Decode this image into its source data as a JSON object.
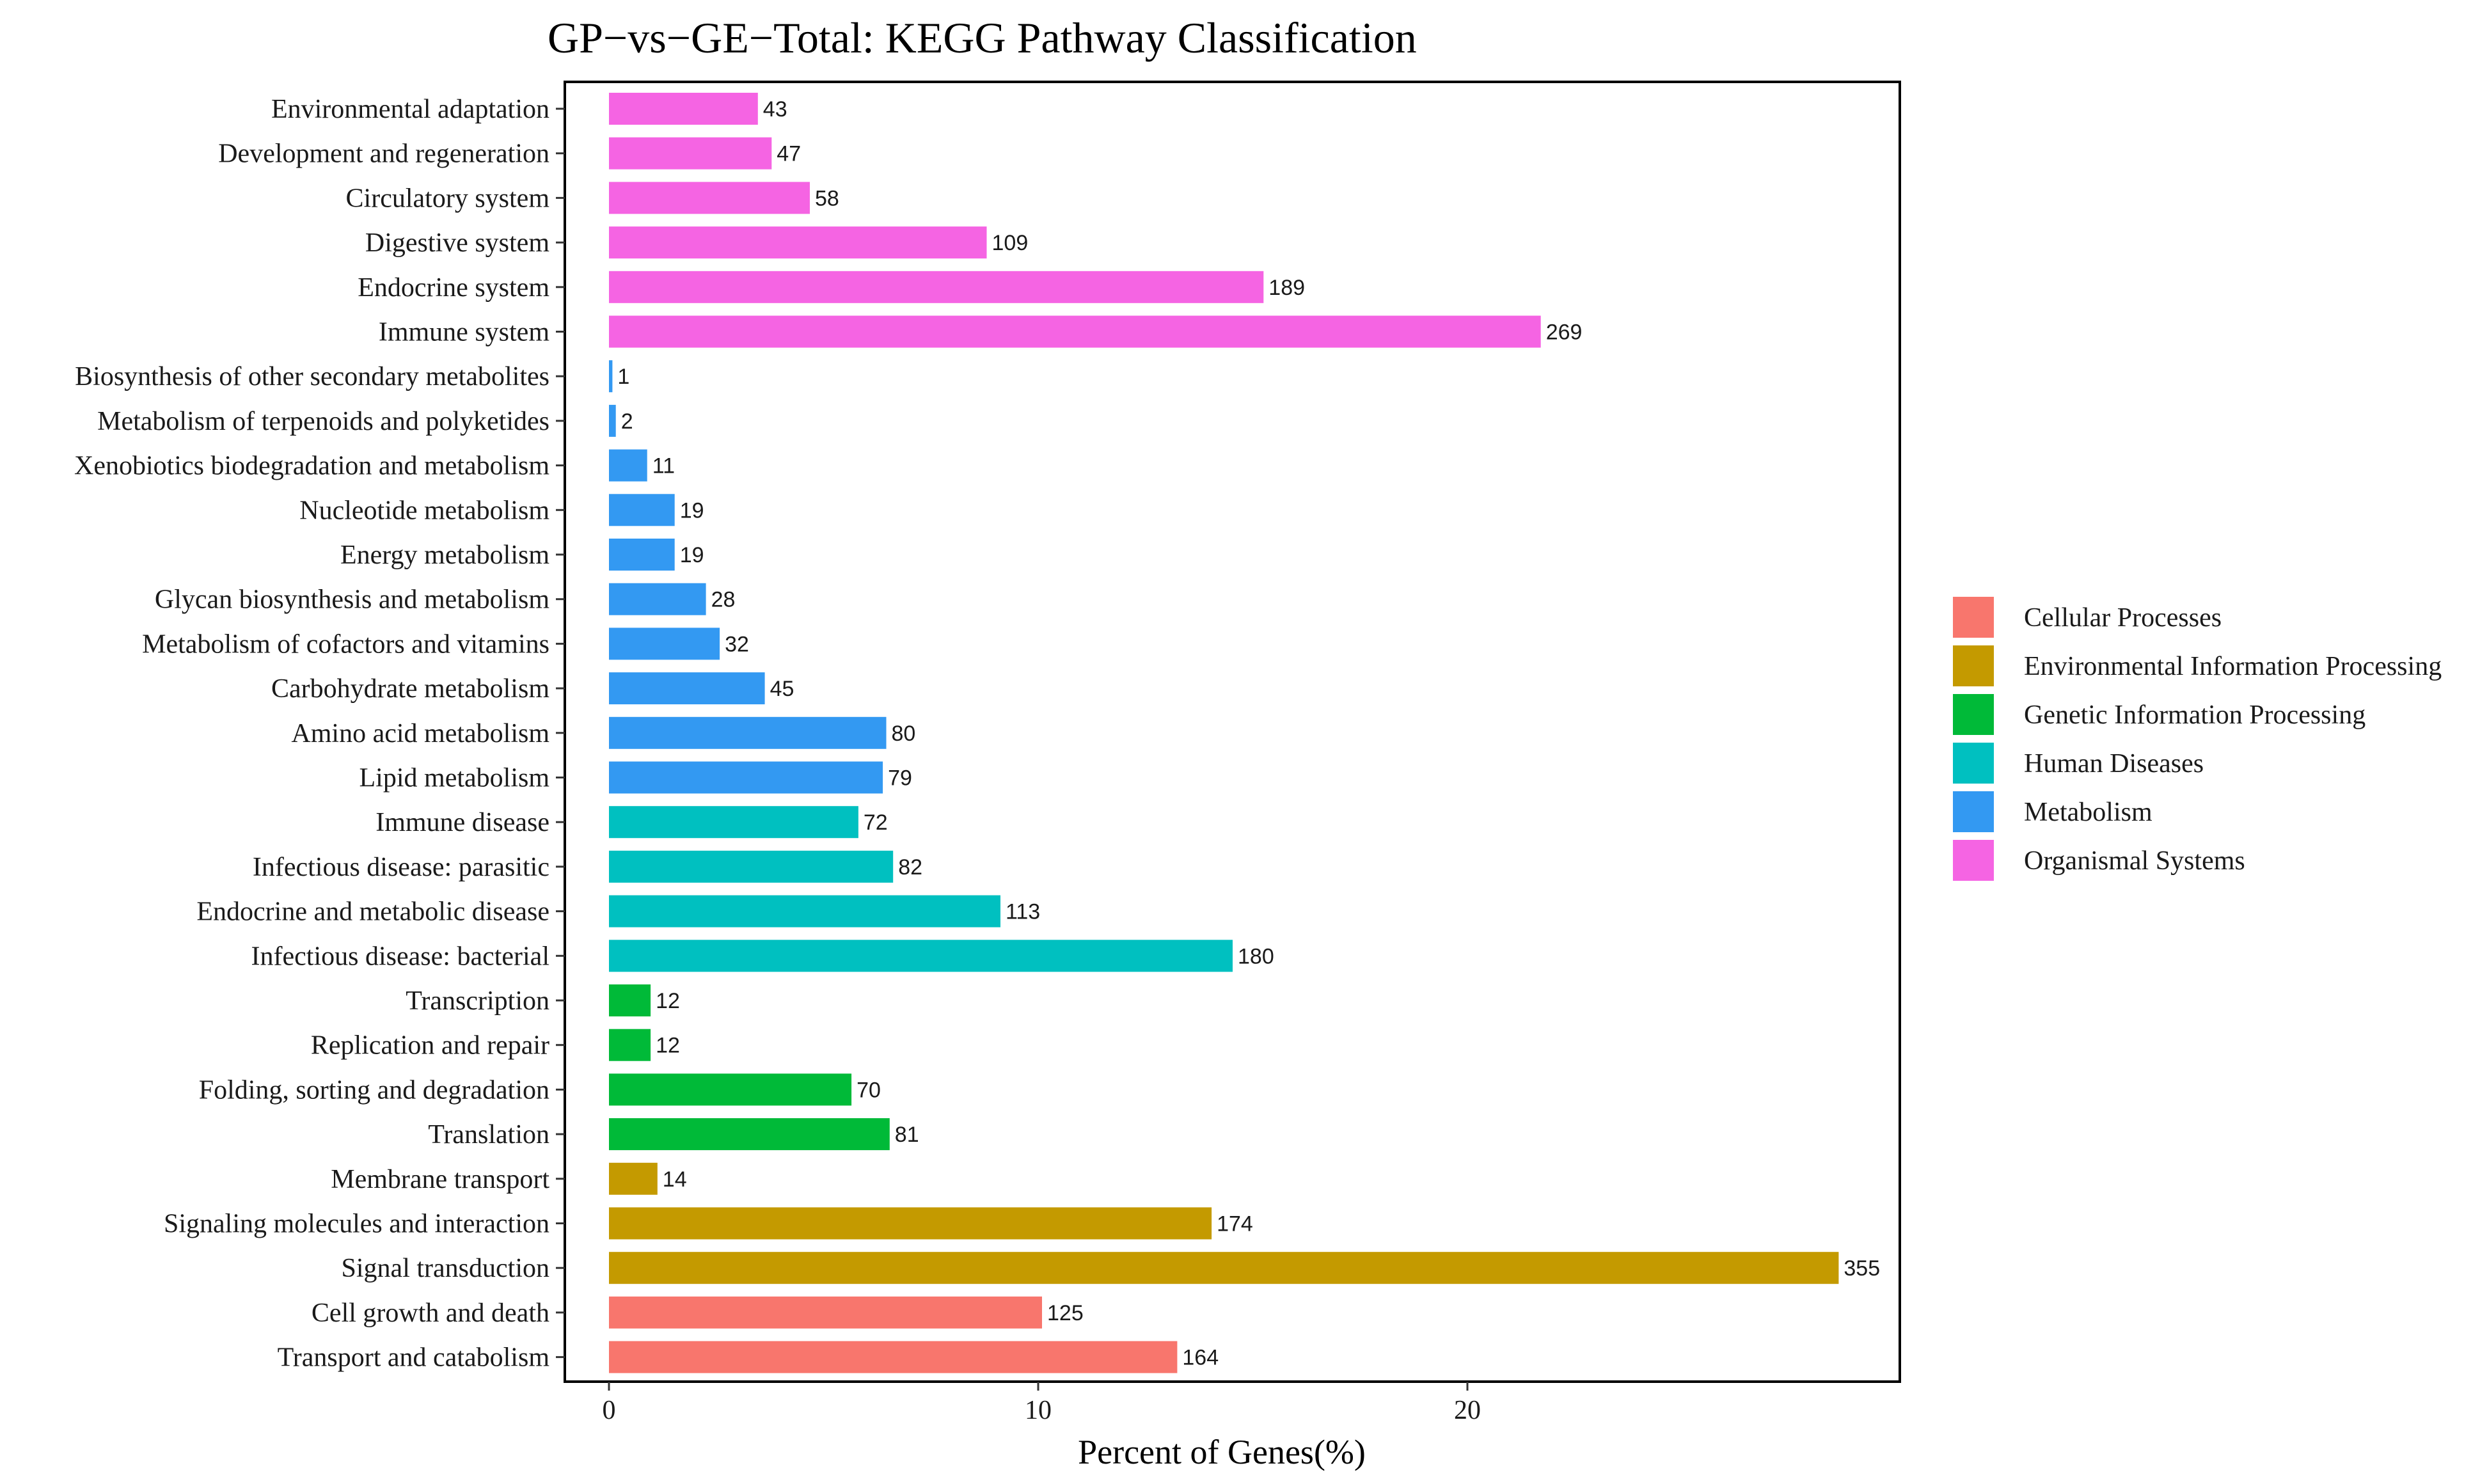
{
  "chart_data": {
    "type": "bar",
    "orientation": "horizontal",
    "title": "GP−vs−GE−Total: KEGG Pathway Classification",
    "xlabel": "Percent of Genes(%)",
    "ylabel": "",
    "xlim": [
      0,
      30
    ],
    "xticks": [
      0,
      10,
      20
    ],
    "colors": {
      "Cellular Processes": "#F8766D",
      "Environmental Information Processing": "#C49A00",
      "Genetic Information Processing": "#00BA38",
      "Human Diseases": "#00C0C0",
      "Metabolism": "#3399F2",
      "Organismal Systems": "#F564E3"
    },
    "legend": [
      "Cellular Processes",
      "Environmental Information Processing",
      "Genetic Information Processing",
      "Human Diseases",
      "Metabolism",
      "Organismal Systems"
    ],
    "bars": [
      {
        "category": "Environmental adaptation",
        "group": "Organismal Systems",
        "count": 43,
        "percent": 3.47
      },
      {
        "category": "Development and regeneration",
        "group": "Organismal Systems",
        "count": 47,
        "percent": 3.79
      },
      {
        "category": "Circulatory system",
        "group": "Organismal Systems",
        "count": 58,
        "percent": 4.68
      },
      {
        "category": "Digestive system",
        "group": "Organismal Systems",
        "count": 109,
        "percent": 8.8
      },
      {
        "category": "Endocrine system",
        "group": "Organismal Systems",
        "count": 189,
        "percent": 15.25
      },
      {
        "category": "Immune system",
        "group": "Organismal Systems",
        "count": 269,
        "percent": 21.71
      },
      {
        "category": "Biosynthesis of other secondary metabolites",
        "group": "Metabolism",
        "count": 1,
        "percent": 0.08
      },
      {
        "category": "Metabolism of terpenoids and polyketides",
        "group": "Metabolism",
        "count": 2,
        "percent": 0.16
      },
      {
        "category": "Xenobiotics biodegradation and metabolism",
        "group": "Metabolism",
        "count": 11,
        "percent": 0.89
      },
      {
        "category": "Nucleotide metabolism",
        "group": "Metabolism",
        "count": 19,
        "percent": 1.53
      },
      {
        "category": "Energy metabolism",
        "group": "Metabolism",
        "count": 19,
        "percent": 1.53
      },
      {
        "category": "Glycan biosynthesis and metabolism",
        "group": "Metabolism",
        "count": 28,
        "percent": 2.26
      },
      {
        "category": "Metabolism of cofactors and vitamins",
        "group": "Metabolism",
        "count": 32,
        "percent": 2.58
      },
      {
        "category": "Carbohydrate metabolism",
        "group": "Metabolism",
        "count": 45,
        "percent": 3.63
      },
      {
        "category": "Amino acid metabolism",
        "group": "Metabolism",
        "count": 80,
        "percent": 6.46
      },
      {
        "category": "Lipid metabolism",
        "group": "Metabolism",
        "count": 79,
        "percent": 6.38
      },
      {
        "category": "Immune disease",
        "group": "Human Diseases",
        "count": 72,
        "percent": 5.81
      },
      {
        "category": "Infectious disease: parasitic",
        "group": "Human Diseases",
        "count": 82,
        "percent": 6.62
      },
      {
        "category": "Endocrine and metabolic disease",
        "group": "Human Diseases",
        "count": 113,
        "percent": 9.12
      },
      {
        "category": "Infectious disease: bacterial",
        "group": "Human Diseases",
        "count": 180,
        "percent": 14.53
      },
      {
        "category": "Transcription",
        "group": "Genetic Information Processing",
        "count": 12,
        "percent": 0.97
      },
      {
        "category": "Replication and repair",
        "group": "Genetic Information Processing",
        "count": 12,
        "percent": 0.97
      },
      {
        "category": "Folding, sorting and degradation",
        "group": "Genetic Information Processing",
        "count": 70,
        "percent": 5.65
      },
      {
        "category": "Translation",
        "group": "Genetic Information Processing",
        "count": 81,
        "percent": 6.54
      },
      {
        "category": "Membrane transport",
        "group": "Environmental Information Processing",
        "count": 14,
        "percent": 1.13
      },
      {
        "category": "Signaling molecules and interaction",
        "group": "Environmental Information Processing",
        "count": 174,
        "percent": 14.04
      },
      {
        "category": "Signal transduction",
        "group": "Environmental Information Processing",
        "count": 355,
        "percent": 28.65
      },
      {
        "category": "Cell growth and death",
        "group": "Cellular Processes",
        "count": 125,
        "percent": 10.09
      },
      {
        "category": "Transport and catabolism",
        "group": "Cellular Processes",
        "count": 164,
        "percent": 13.24
      }
    ]
  }
}
